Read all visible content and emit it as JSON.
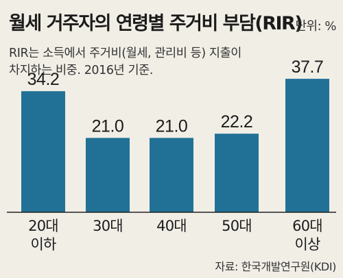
{
  "title": "월세 거주자의 연령별 주거비 부담(RIR)",
  "unit": "단위: %",
  "subtitle_lines": [
    "RIR는 소득에서 주거비(월세, 관리비 등) 지출이",
    "차지하는 비중. 2016년 기준."
  ],
  "source": "자료: 한국개발연구원(KDI)",
  "colors": {
    "bar": "#217196",
    "background": "#f1eee6",
    "baseline": "#222222",
    "text": "#1b1b1b"
  },
  "chart_data": {
    "type": "bar",
    "title": "월세 거주자의 연령별 주거비 부담(RIR)",
    "categories": [
      [
        "20대",
        "이하"
      ],
      [
        "30대"
      ],
      [
        "40대"
      ],
      [
        "50대"
      ],
      [
        "60대",
        "이상"
      ]
    ],
    "values": [
      34.2,
      21.0,
      21.0,
      22.2,
      37.7
    ],
    "value_labels": [
      "34.2",
      "21.0",
      "21.0",
      "22.2",
      "37.7"
    ],
    "ylabel": "",
    "xlabel": "",
    "unit": "%",
    "grid": false,
    "legend": "none"
  }
}
